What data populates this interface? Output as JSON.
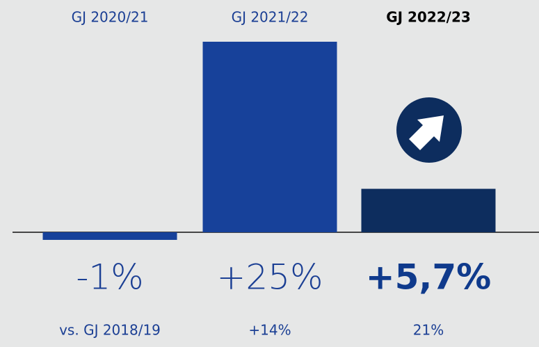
{
  "chart_data": {
    "type": "bar",
    "categories": [
      "GJ 2020/21",
      "GJ 2021/22",
      "GJ 2022/23"
    ],
    "values": [
      -1,
      25,
      5.7
    ],
    "value_labels": [
      "-1%",
      "+25%",
      "+5,7%"
    ],
    "comparison_labels": [
      "vs. GJ 2018/19",
      "+14%",
      "21%"
    ],
    "colors": [
      "#17419a",
      "#17419a",
      "#0d2d5e"
    ]
  }
}
